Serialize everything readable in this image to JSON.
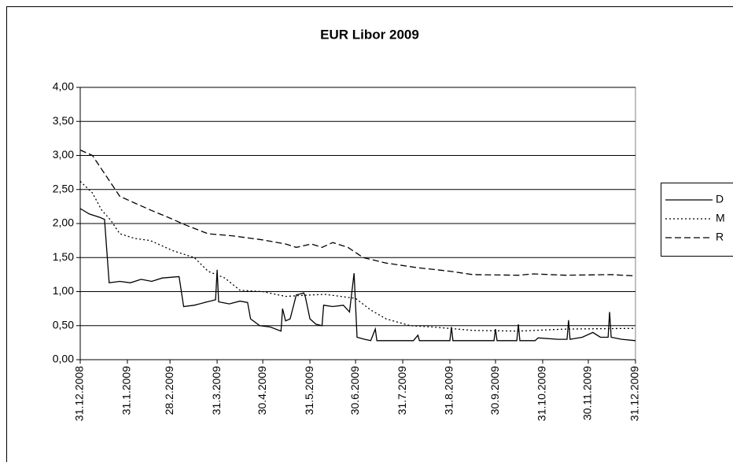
{
  "chart_data": {
    "type": "line",
    "title": "EUR Libor 2009",
    "xlim": [
      "2008-12-31",
      "2009-12-31"
    ],
    "xticks": [
      {
        "value": "2008-12-31",
        "label": "31.12.2008"
      },
      {
        "value": "2009-01-31",
        "label": "31.1.2009"
      },
      {
        "value": "2009-02-28",
        "label": "28.2.2009"
      },
      {
        "value": "2009-03-31",
        "label": "31.3.2009"
      },
      {
        "value": "2009-04-30",
        "label": "30.4.2009"
      },
      {
        "value": "2009-05-31",
        "label": "31.5.2009"
      },
      {
        "value": "2009-06-30",
        "label": "30.6.2009"
      },
      {
        "value": "2009-07-31",
        "label": "31.7.2009"
      },
      {
        "value": "2009-08-31",
        "label": "31.8.2009"
      },
      {
        "value": "2009-09-30",
        "label": "30.9.2009"
      },
      {
        "value": "2009-10-31",
        "label": "31.10.2009"
      },
      {
        "value": "2009-11-30",
        "label": "30.11.2009"
      },
      {
        "value": "2009-12-31",
        "label": "31.12.2009"
      }
    ],
    "ylim": [
      0,
      4
    ],
    "yticks": [
      {
        "value": 0,
        "label": "0,00"
      },
      {
        "value": 0.5,
        "label": "0,50"
      },
      {
        "value": 1,
        "label": "1,00"
      },
      {
        "value": 1.5,
        "label": "1,50"
      },
      {
        "value": 2,
        "label": "2,00"
      },
      {
        "value": 2.5,
        "label": "2,50"
      },
      {
        "value": 3,
        "label": "3,00"
      },
      {
        "value": 3.5,
        "label": "3,50"
      },
      {
        "value": 4,
        "label": "4,00"
      }
    ],
    "grid": true,
    "legend": "right",
    "series": [
      {
        "name": "D",
        "color": "#000000",
        "style": "solid",
        "x": [
          "2008-12-31",
          "2009-01-06",
          "2009-01-13",
          "2009-01-16",
          "2009-01-19",
          "2009-01-26",
          "2009-02-02",
          "2009-02-09",
          "2009-02-16",
          "2009-02-23",
          "2009-03-06",
          "2009-03-09",
          "2009-03-16",
          "2009-03-23",
          "2009-03-30",
          "2009-03-31",
          "2009-04-01",
          "2009-04-08",
          "2009-04-15",
          "2009-04-20",
          "2009-04-22",
          "2009-04-28",
          "2009-05-05",
          "2009-05-12",
          "2009-05-13",
          "2009-05-15",
          "2009-05-18",
          "2009-05-22",
          "2009-05-27",
          "2009-05-28",
          "2009-05-31",
          "2009-06-04",
          "2009-06-08",
          "2009-06-09",
          "2009-06-15",
          "2009-06-22",
          "2009-06-26",
          "2009-06-29",
          "2009-07-01",
          "2009-07-06",
          "2009-07-10",
          "2009-07-13",
          "2009-07-14",
          "2009-08-07",
          "2009-08-10",
          "2009-08-11",
          "2009-08-31",
          "2009-09-01",
          "2009-09-02",
          "2009-09-29",
          "2009-09-30",
          "2009-10-01",
          "2009-10-14",
          "2009-10-15",
          "2009-10-16",
          "2009-10-26",
          "2009-10-28",
          "2009-11-10",
          "2009-11-16",
          "2009-11-17",
          "2009-11-18",
          "2009-11-26",
          "2009-12-03",
          "2009-12-08",
          "2009-12-13",
          "2009-12-14",
          "2009-12-15",
          "2009-12-22",
          "2009-12-31"
        ],
        "values": [
          2.22,
          2.14,
          2.09,
          2.06,
          1.13,
          1.15,
          1.13,
          1.18,
          1.15,
          1.2,
          1.22,
          0.78,
          0.8,
          0.84,
          0.88,
          1.32,
          0.85,
          0.82,
          0.86,
          0.84,
          0.6,
          0.5,
          0.48,
          0.42,
          0.75,
          0.57,
          0.6,
          0.95,
          0.98,
          0.92,
          0.6,
          0.52,
          0.5,
          0.8,
          0.78,
          0.8,
          0.7,
          1.27,
          0.33,
          0.3,
          0.28,
          0.45,
          0.28,
          0.28,
          0.36,
          0.28,
          0.28,
          0.48,
          0.28,
          0.28,
          0.45,
          0.28,
          0.28,
          0.52,
          0.28,
          0.28,
          0.32,
          0.3,
          0.3,
          0.58,
          0.3,
          0.33,
          0.4,
          0.33,
          0.33,
          0.7,
          0.33,
          0.3,
          0.28
        ]
      },
      {
        "name": "M",
        "color": "#000000",
        "style": "dotted",
        "x": [
          "2008-12-31",
          "2009-01-08",
          "2009-01-14",
          "2009-01-20",
          "2009-01-26",
          "2009-02-05",
          "2009-02-15",
          "2009-03-02",
          "2009-03-16",
          "2009-03-25",
          "2009-04-05",
          "2009-04-15",
          "2009-04-30",
          "2009-05-15",
          "2009-05-31",
          "2009-06-10",
          "2009-06-30",
          "2009-07-10",
          "2009-07-20",
          "2009-08-05",
          "2009-08-20",
          "2009-09-15",
          "2009-10-15",
          "2009-11-15",
          "2009-12-31"
        ],
        "values": [
          2.62,
          2.45,
          2.2,
          2.05,
          1.85,
          1.78,
          1.75,
          1.6,
          1.5,
          1.3,
          1.2,
          1.02,
          1.0,
          0.93,
          0.95,
          0.96,
          0.9,
          0.73,
          0.6,
          0.5,
          0.48,
          0.43,
          0.42,
          0.45,
          0.46
        ]
      },
      {
        "name": "R",
        "color": "#000000",
        "style": "dashed",
        "x": [
          "2008-12-31",
          "2009-01-08",
          "2009-01-14",
          "2009-01-20",
          "2009-01-26",
          "2009-02-05",
          "2009-02-15",
          "2009-02-28",
          "2009-03-10",
          "2009-03-25",
          "2009-04-10",
          "2009-04-30",
          "2009-05-15",
          "2009-05-22",
          "2009-06-01",
          "2009-06-08",
          "2009-06-15",
          "2009-06-25",
          "2009-07-05",
          "2009-07-20",
          "2009-08-10",
          "2009-08-31",
          "2009-09-15",
          "2009-10-15",
          "2009-10-25",
          "2009-11-15",
          "2009-12-15",
          "2009-12-31"
        ],
        "values": [
          3.08,
          3.0,
          2.8,
          2.6,
          2.4,
          2.3,
          2.2,
          2.08,
          1.98,
          1.85,
          1.82,
          1.76,
          1.7,
          1.65,
          1.7,
          1.65,
          1.72,
          1.65,
          1.5,
          1.42,
          1.35,
          1.3,
          1.25,
          1.24,
          1.26,
          1.24,
          1.25,
          1.23
        ]
      }
    ]
  }
}
